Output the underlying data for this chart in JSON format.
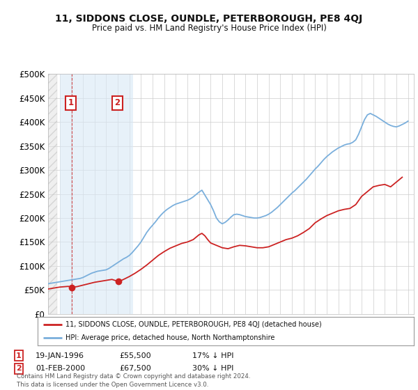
{
  "title": "11, SIDDONS CLOSE, OUNDLE, PETERBOROUGH, PE8 4QJ",
  "subtitle": "Price paid vs. HM Land Registry's House Price Index (HPI)",
  "legend_line1": "11, SIDDONS CLOSE, OUNDLE, PETERBOROUGH, PE8 4QJ (detached house)",
  "legend_line2": "HPI: Average price, detached house, North Northamptonshire",
  "footer": "Contains HM Land Registry data © Crown copyright and database right 2024.\nThis data is licensed under the Open Government Licence v3.0.",
  "sale1_date": "19-JAN-1996",
  "sale1_price": "£55,500",
  "sale1_pct": "17% ↓ HPI",
  "sale2_date": "01-FEB-2000",
  "sale2_price": "£67,500",
  "sale2_pct": "30% ↓ HPI",
  "sale1_x": 1996.05,
  "sale1_y": 55500,
  "sale2_x": 2000.08,
  "sale2_y": 67500,
  "xmin": 1994,
  "xmax": 2025.5,
  "ymin": 0,
  "ymax": 500000,
  "yticks": [
    0,
    50000,
    100000,
    150000,
    200000,
    250000,
    300000,
    350000,
    400000,
    450000,
    500000
  ],
  "ytick_labels": [
    "£0",
    "£50K",
    "£100K",
    "£150K",
    "£200K",
    "£250K",
    "£300K",
    "£350K",
    "£400K",
    "£450K",
    "£500K"
  ],
  "hpi_color": "#7aafdc",
  "price_color": "#cc2222",
  "background_color": "#ffffff",
  "grid_color": "#cccccc",
  "hpi_data_x": [
    1994.0,
    1994.25,
    1994.5,
    1994.75,
    1995.0,
    1995.25,
    1995.5,
    1995.75,
    1996.0,
    1996.25,
    1996.5,
    1996.75,
    1997.0,
    1997.25,
    1997.5,
    1997.75,
    1998.0,
    1998.25,
    1998.5,
    1998.75,
    1999.0,
    1999.25,
    1999.5,
    1999.75,
    2000.0,
    2000.25,
    2000.5,
    2000.75,
    2001.0,
    2001.25,
    2001.5,
    2001.75,
    2002.0,
    2002.25,
    2002.5,
    2002.75,
    2003.0,
    2003.25,
    2003.5,
    2003.75,
    2004.0,
    2004.25,
    2004.5,
    2004.75,
    2005.0,
    2005.25,
    2005.5,
    2005.75,
    2006.0,
    2006.25,
    2006.5,
    2006.75,
    2007.0,
    2007.25,
    2007.5,
    2007.75,
    2008.0,
    2008.25,
    2008.5,
    2008.75,
    2009.0,
    2009.25,
    2009.5,
    2009.75,
    2010.0,
    2010.25,
    2010.5,
    2010.75,
    2011.0,
    2011.25,
    2011.5,
    2011.75,
    2012.0,
    2012.25,
    2012.5,
    2012.75,
    2013.0,
    2013.25,
    2013.5,
    2013.75,
    2014.0,
    2014.25,
    2014.5,
    2014.75,
    2015.0,
    2015.25,
    2015.5,
    2015.75,
    2016.0,
    2016.25,
    2016.5,
    2016.75,
    2017.0,
    2017.25,
    2017.5,
    2017.75,
    2018.0,
    2018.25,
    2018.5,
    2018.75,
    2019.0,
    2019.25,
    2019.5,
    2019.75,
    2020.0,
    2020.25,
    2020.5,
    2020.75,
    2021.0,
    2021.25,
    2021.5,
    2021.75,
    2022.0,
    2022.25,
    2022.5,
    2022.75,
    2023.0,
    2023.25,
    2023.5,
    2023.75,
    2024.0,
    2024.25,
    2024.5,
    2024.75,
    2025.0
  ],
  "hpi_data_y": [
    63000,
    64000,
    65000,
    66000,
    67000,
    68000,
    69000,
    70000,
    71000,
    72000,
    73000,
    74000,
    76000,
    79000,
    82000,
    85000,
    87000,
    89000,
    90000,
    91000,
    92000,
    95000,
    99000,
    103000,
    107000,
    111000,
    115000,
    118000,
    122000,
    128000,
    135000,
    142000,
    150000,
    160000,
    170000,
    178000,
    185000,
    192000,
    200000,
    207000,
    213000,
    218000,
    222000,
    226000,
    229000,
    231000,
    233000,
    235000,
    237000,
    240000,
    244000,
    249000,
    254000,
    258000,
    248000,
    238000,
    228000,
    215000,
    200000,
    192000,
    188000,
    191000,
    196000,
    202000,
    207000,
    208000,
    207000,
    205000,
    203000,
    202000,
    201000,
    200000,
    200000,
    201000,
    203000,
    205000,
    208000,
    212000,
    217000,
    222000,
    228000,
    234000,
    240000,
    246000,
    252000,
    257000,
    263000,
    269000,
    275000,
    281000,
    288000,
    295000,
    302000,
    308000,
    315000,
    322000,
    328000,
    333000,
    338000,
    342000,
    346000,
    349000,
    352000,
    354000,
    355000,
    358000,
    363000,
    375000,
    390000,
    405000,
    415000,
    418000,
    415000,
    412000,
    408000,
    404000,
    400000,
    396000,
    393000,
    391000,
    390000,
    392000,
    395000,
    398000,
    402000
  ],
  "price_line_x": [
    1994.0,
    1994.25,
    1994.5,
    1994.75,
    1995.0,
    1995.25,
    1995.5,
    1995.75,
    1996.05,
    1996.5,
    1997.0,
    1997.5,
    1998.0,
    1998.5,
    1999.0,
    1999.5,
    2000.08,
    2000.5,
    2001.0,
    2001.5,
    2002.0,
    2002.5,
    2003.0,
    2003.5,
    2004.0,
    2004.5,
    2005.0,
    2005.5,
    2006.0,
    2006.5,
    2007.0,
    2007.25,
    2007.5,
    2007.75,
    2008.0,
    2008.5,
    2009.0,
    2009.5,
    2010.0,
    2010.5,
    2011.0,
    2011.5,
    2012.0,
    2012.5,
    2013.0,
    2013.5,
    2014.0,
    2014.5,
    2015.0,
    2015.5,
    2016.0,
    2016.5,
    2017.0,
    2017.5,
    2018.0,
    2018.5,
    2019.0,
    2019.5,
    2020.0,
    2020.5,
    2021.0,
    2021.5,
    2022.0,
    2022.5,
    2023.0,
    2023.5,
    2024.0,
    2024.5
  ],
  "price_line_y": [
    52000,
    53000,
    54000,
    55000,
    56000,
    56500,
    57000,
    57500,
    55500,
    57000,
    60000,
    63000,
    66000,
    68000,
    70000,
    72000,
    67500,
    72000,
    78000,
    85000,
    93000,
    102000,
    112000,
    122000,
    130000,
    137000,
    142000,
    147000,
    150000,
    155000,
    165000,
    168000,
    163000,
    155000,
    148000,
    143000,
    138000,
    136000,
    140000,
    143000,
    142000,
    140000,
    138000,
    138000,
    140000,
    145000,
    150000,
    155000,
    158000,
    163000,
    170000,
    178000,
    190000,
    198000,
    205000,
    210000,
    215000,
    218000,
    220000,
    228000,
    245000,
    255000,
    265000,
    268000,
    270000,
    265000,
    275000,
    285000
  ]
}
